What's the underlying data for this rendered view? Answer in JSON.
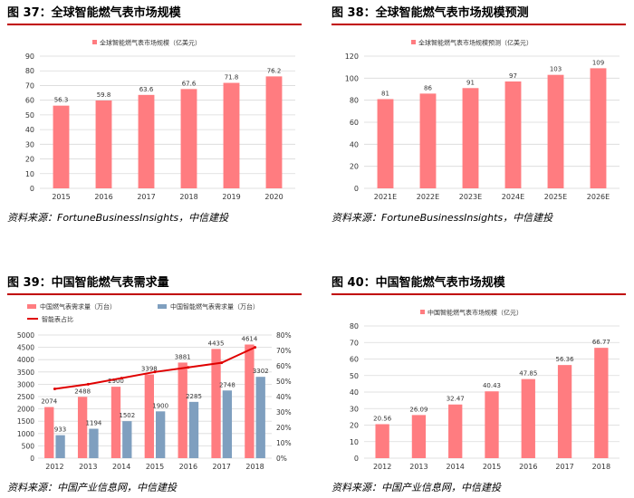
{
  "colors": {
    "bar_red": "#ff7c80",
    "bar_blue": "#7f9fbf",
    "line_red": "#e00000",
    "grid": "#d9d9d9",
    "title_rule": "#c00000"
  },
  "panels": [
    {
      "title": "图 37：全球智能燃气表市场规模",
      "source": "资料来源：FortuneBusinessInsights，中信建投"
    },
    {
      "title": "图 38：全球智能燃气表市场规模预测",
      "source": "资料来源：FortuneBusinessInsights，中信建投"
    },
    {
      "title": "图 39：中国智能燃气表需求量",
      "source": "资料来源：中国产业信息网，中信建投"
    },
    {
      "title": "图 40：中国智能燃气表市场规模",
      "source": "资料来源：中国产业信息网，中信建投"
    }
  ],
  "chart_data": [
    {
      "type": "bar",
      "categories": [
        "2015",
        "2016",
        "2017",
        "2018",
        "2019",
        "2020"
      ],
      "series": [
        {
          "name": "全球智能燃气表市场规模（亿美元）",
          "values": [
            56.3,
            59.8,
            63.6,
            67.6,
            71.8,
            76.2
          ]
        }
      ],
      "data_labels": [
        "56.3",
        "59.8",
        "63.6",
        "67.6",
        "71.8",
        "76.2"
      ],
      "ylim": [
        0,
        90
      ],
      "yticks": [
        "0",
        "10",
        "20",
        "30",
        "40",
        "50",
        "60",
        "70",
        "80",
        "90"
      ],
      "grid": true,
      "legend": "top-center"
    },
    {
      "type": "bar",
      "categories": [
        "2021E",
        "2022E",
        "2023E",
        "2024E",
        "2025E",
        "2026E"
      ],
      "series": [
        {
          "name": "全球智能燃气表市场规模预测（亿美元）",
          "values": [
            81,
            86,
            91,
            97,
            103,
            109
          ]
        }
      ],
      "data_labels": [
        "81",
        "86",
        "91",
        "97",
        "103",
        "109"
      ],
      "ylim": [
        0,
        120
      ],
      "yticks": [
        "0",
        "20",
        "40",
        "60",
        "80",
        "100",
        "120"
      ],
      "grid": true,
      "legend": "top-center"
    },
    {
      "type": "bar",
      "categories": [
        "2012",
        "2013",
        "2014",
        "2015",
        "2016",
        "2017",
        "2018"
      ],
      "series": [
        {
          "name": "中国燃气表需求量（万台）",
          "values": [
            2074,
            2488,
            2900,
            3398,
            3881,
            4435,
            4614
          ],
          "data_labels": [
            "2074",
            "2488",
            "2900",
            "3398",
            "3881",
            "4435",
            "4614"
          ]
        },
        {
          "name": "中国智能燃气表需求量（万台）",
          "values": [
            933,
            1194,
            1502,
            1900,
            2285,
            2748,
            3302
          ],
          "data_labels": [
            "933",
            "1194",
            "1502",
            "1900",
            "2285",
            "2748",
            "3302"
          ]
        }
      ],
      "line_series": {
        "name": "智能表占比",
        "values": [
          45,
          48,
          52,
          56,
          59,
          62,
          72
        ],
        "axis": "right"
      },
      "ylim": [
        0,
        5000
      ],
      "yticks": [
        "0",
        "500",
        "1000",
        "1500",
        "2000",
        "2500",
        "3000",
        "3500",
        "4000",
        "4500",
        "5000"
      ],
      "y2lim": [
        0,
        80
      ],
      "y2ticks": [
        "0%",
        "10%",
        "20%",
        "30%",
        "40%",
        "50%",
        "60%",
        "70%",
        "80%"
      ],
      "grid": true,
      "legend": "top-left"
    },
    {
      "type": "bar",
      "categories": [
        "2012",
        "2013",
        "2014",
        "2015",
        "2016",
        "2017",
        "2018"
      ],
      "series": [
        {
          "name": "中国智能燃气表市场规模（亿元）",
          "values": [
            20.56,
            26.09,
            32.47,
            40.43,
            47.85,
            56.36,
            66.77
          ]
        }
      ],
      "data_labels": [
        "20.56",
        "26.09",
        "32.47",
        "40.43",
        "47.85",
        "56.36",
        "66.77"
      ],
      "ylim": [
        0,
        80
      ],
      "yticks": [
        "0",
        "10",
        "20",
        "30",
        "40",
        "50",
        "60",
        "70",
        "80"
      ],
      "grid": true,
      "legend": "top-center"
    }
  ]
}
